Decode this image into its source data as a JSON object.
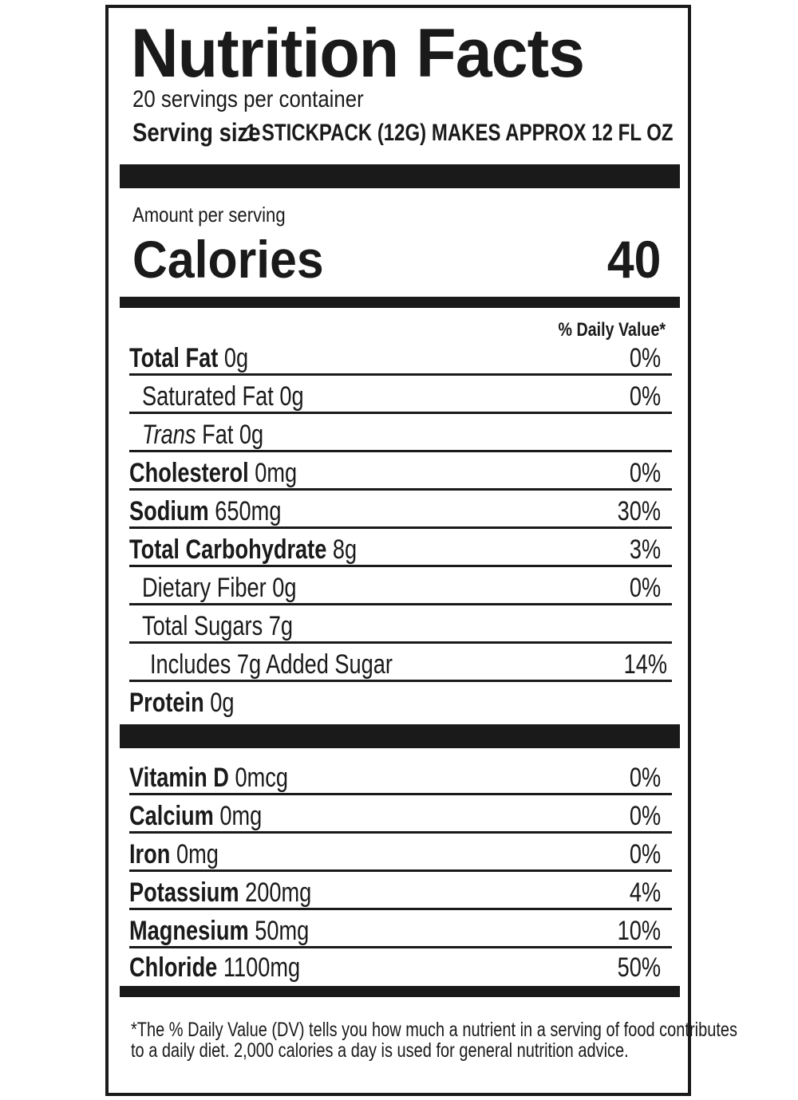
{
  "title": "Nutrition Facts",
  "servings_per_container": "20 servings per container",
  "serving_size_label": "Serving size",
  "serving_size_value": "1 STICKPACK (12G) MAKES APPROX 12 FL OZ",
  "amount_per_serving": "Amount per serving",
  "calories_label": "Calories",
  "calories_value": "40",
  "dv_header": "% Daily Value*",
  "nutrients": [
    {
      "name": "Total Fat",
      "amount": "0g",
      "dv": "0%"
    },
    {
      "name": "Saturated Fat",
      "amount": "0g",
      "dv": "0%"
    },
    {
      "name": "Trans",
      "amount": "Fat 0g",
      "dv": ""
    },
    {
      "name": "Cholesterol",
      "amount": "0mg",
      "dv": "0%"
    },
    {
      "name": "Sodium",
      "amount": "650mg",
      "dv": "30%"
    },
    {
      "name": "Total Carbohydrate",
      "amount": "8g",
      "dv": "3%"
    },
    {
      "name": "Dietary Fiber",
      "amount": "0g",
      "dv": "0%"
    },
    {
      "name": "Total Sugars",
      "amount": "7g",
      "dv": ""
    },
    {
      "name": "Includes 7g Added Sugar",
      "amount": "",
      "dv": "14%"
    },
    {
      "name": "Protein",
      "amount": "0g",
      "dv": ""
    }
  ],
  "vitamins": [
    {
      "name": "Vitamin D",
      "amount": "0mcg",
      "dv": "0%"
    },
    {
      "name": "Calcium",
      "amount": "0mg",
      "dv": "0%"
    },
    {
      "name": "Iron",
      "amount": "0mg",
      "dv": "0%"
    },
    {
      "name": "Potassium",
      "amount": "200mg",
      "dv": "4%"
    },
    {
      "name": "Magnesium",
      "amount": "50mg",
      "dv": "10%"
    },
    {
      "name": "Chloride",
      "amount": "1100mg",
      "dv": "50%"
    }
  ],
  "footnote_line1": "*The % Daily Value (DV) tells you how much a nutrient in a serving of food contributes",
  "footnote_line2": "to a daily diet. 2,000 calories a day is used for general nutrition advice."
}
